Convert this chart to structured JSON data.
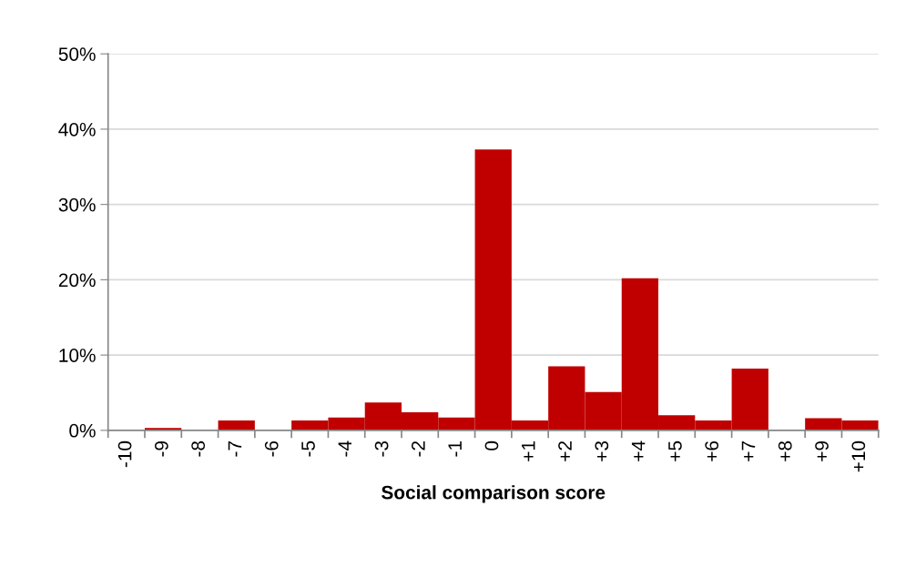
{
  "chart_data": {
    "type": "bar",
    "xlabel": "Social comparison score",
    "categories": [
      "-10",
      "-9",
      "-8",
      "-7",
      "-6",
      "-5",
      "-4",
      "-3",
      "-2",
      "-1",
      "0",
      "+1",
      "+2",
      "+3",
      "+4",
      "+5",
      "+6",
      "+7",
      "+8",
      "+9",
      "+10"
    ],
    "values": [
      0,
      0.3,
      0,
      1.3,
      0,
      1.3,
      1.7,
      3.7,
      2.4,
      1.7,
      37.3,
      1.3,
      8.5,
      5.1,
      20.2,
      2.0,
      1.3,
      8.2,
      0,
      1.6,
      1.3
    ],
    "color": "#c00000",
    "ylim": [
      0,
      50
    ],
    "yticks": [
      {
        "value": 0,
        "label": "0%"
      },
      {
        "value": 10,
        "label": "10%"
      },
      {
        "value": 20,
        "label": "20%"
      },
      {
        "value": 30,
        "label": "30%"
      },
      {
        "value": 40,
        "label": "40%"
      },
      {
        "value": 50,
        "label": "50%"
      }
    ],
    "grid": "y"
  }
}
